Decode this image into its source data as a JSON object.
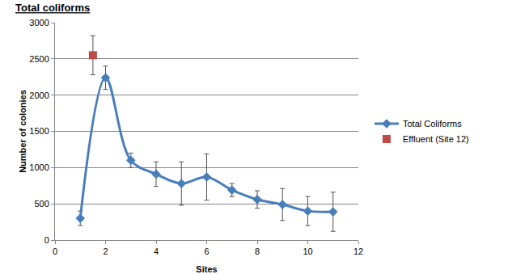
{
  "chart_data": {
    "type": "line",
    "title": "Total coliforms",
    "x_label": "Sites",
    "y_label": "Number of colonies",
    "series": [
      {
        "name": "Total Coliforms",
        "color": "#4a7ebb",
        "marker": "diamond",
        "line_style": "smooth",
        "x": [
          1,
          2,
          3,
          4,
          5,
          6,
          7,
          8,
          9,
          10,
          11
        ],
        "values": [
          300,
          2240,
          1100,
          910,
          780,
          870,
          690,
          560,
          490,
          400,
          390
        ],
        "errors": [
          100,
          160,
          100,
          170,
          300,
          320,
          90,
          120,
          220,
          200,
          270
        ]
      },
      {
        "name": "Effluent (Site 12)",
        "color": "#be4b48",
        "marker": "square",
        "line_style": "none",
        "x": [
          1.5
        ],
        "values": [
          2550
        ],
        "errors": [
          270
        ]
      }
    ],
    "xlim": [
      0,
      12
    ],
    "xticks": [
      0,
      2,
      4,
      6,
      8,
      10,
      12
    ],
    "ylim": [
      0,
      3000
    ],
    "yticks": [
      0,
      500,
      1000,
      1500,
      2000,
      2500,
      3000
    ],
    "grid": true,
    "legend": "right"
  }
}
